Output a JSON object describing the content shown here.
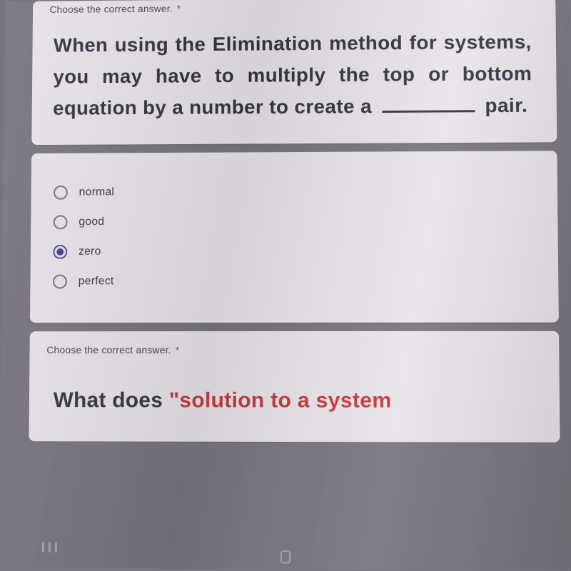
{
  "q1": {
    "instruction": "Choose the correct answer.",
    "required_marker": "*",
    "text_before_blank": "When using the Elimination method for systems, you may have to multiply the top or bottom equation by a number to create a",
    "text_after_blank": "pair.",
    "options": [
      {
        "label": "normal",
        "selected": false
      },
      {
        "label": "good",
        "selected": false
      },
      {
        "label": "zero",
        "selected": true
      },
      {
        "label": "perfect",
        "selected": false
      }
    ]
  },
  "q2": {
    "instruction": "Choose the correct answer.",
    "required_marker": "*",
    "text_plain": "What does ",
    "text_highlight": "\"solution to a system"
  },
  "colors": {
    "card_bg": "#e8e4ea",
    "page_bg": "#7a7680",
    "text_dark": "#373545",
    "radio_selected": "#4b3e8a",
    "highlight_red": "#c23c3a"
  }
}
